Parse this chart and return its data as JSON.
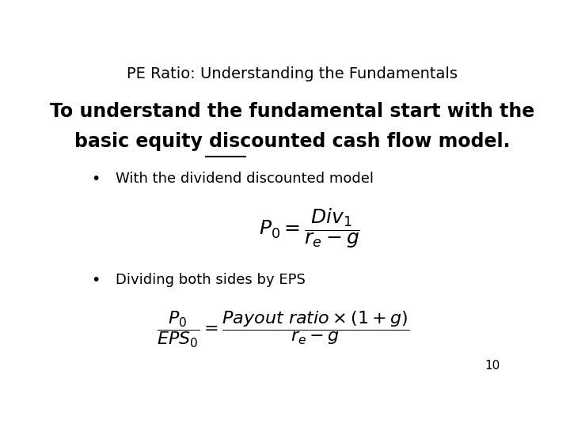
{
  "title": "PE Ratio: Understanding the Fundamentals",
  "title_fontsize": 14,
  "background_color": "#ffffff",
  "text_color": "#000000",
  "page_number": "10",
  "bold_line1": "To understand the fundamental start with the",
  "bold_line2_pre": "basic ",
  "bold_line2_underline": "equity",
  "bold_line2_post": " discounted cash flow model.",
  "bold_fontsize": 17,
  "bullet1_text": "With the dividend discounted model",
  "bullet1_fontsize": 13,
  "bullet2_text": "Dividing both sides by EPS",
  "bullet2_fontsize": 13,
  "formula1": "$P_0 = \\dfrac{Div_1}{r_e - g}$",
  "formula2": "$\\dfrac{P_0}{EPS_0} = \\dfrac{Payout\\ ratio \\times (1+g)}{r_e - g}$",
  "formula_fontsize": 15
}
